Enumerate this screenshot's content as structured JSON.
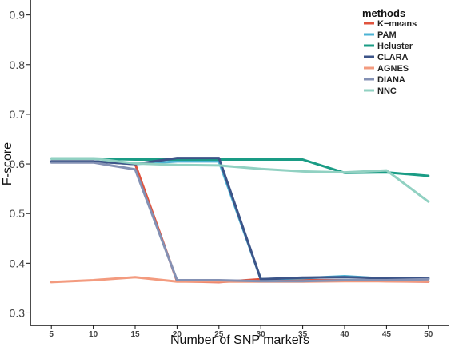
{
  "chart_data": {
    "type": "line",
    "xlabel": "Number of SNP markers",
    "ylabel": "F-score",
    "x": [
      5,
      10,
      15,
      20,
      25,
      30,
      35,
      40,
      45,
      50
    ],
    "xlim": [
      2.5,
      52.5
    ],
    "ylim": [
      0.275,
      0.93
    ],
    "yticks": [
      0.3,
      0.4,
      0.5,
      0.6,
      0.7,
      0.8,
      0.9
    ],
    "ytick_labels": [
      "0.3",
      "0.4",
      "0.5",
      "0.6",
      "0.7",
      "0.8",
      "0.9"
    ],
    "xticks": [
      5,
      10,
      15,
      20,
      25,
      30,
      35,
      40,
      45,
      50
    ],
    "xtick_labels": [
      "5",
      "10",
      "15",
      "20",
      "25",
      "30",
      "35",
      "40",
      "45",
      "50"
    ],
    "grid": false,
    "legend": {
      "title": "methods",
      "position": "top-right"
    },
    "series": [
      {
        "name": "K−means",
        "color": "#e0533d",
        "values": [
          0.605,
          0.605,
          0.6,
          0.364,
          0.362,
          0.368,
          0.366,
          0.366,
          0.364,
          0.363
        ]
      },
      {
        "name": "PAM",
        "color": "#4cb3d4",
        "values": [
          0.605,
          0.605,
          0.6,
          0.605,
          0.605,
          0.368,
          0.37,
          0.374,
          0.369,
          0.37
        ]
      },
      {
        "name": "Hcluster",
        "color": "#1a9c85",
        "values": [
          0.611,
          0.611,
          0.609,
          0.609,
          0.609,
          0.609,
          0.609,
          0.582,
          0.583,
          0.576
        ]
      },
      {
        "name": "CLARA",
        "color": "#3c5488",
        "values": [
          0.605,
          0.605,
          0.6,
          0.612,
          0.612,
          0.368,
          0.371,
          0.372,
          0.37,
          0.37
        ]
      },
      {
        "name": "AGNES",
        "color": "#f39b7f",
        "values": [
          0.362,
          0.366,
          0.372,
          0.363,
          0.363,
          0.363,
          0.363,
          0.364,
          0.364,
          0.364
        ]
      },
      {
        "name": "DIANA",
        "color": "#8491b4",
        "values": [
          0.603,
          0.603,
          0.589,
          0.366,
          0.366,
          0.364,
          0.364,
          0.366,
          0.366,
          0.368
        ]
      },
      {
        "name": "NNC",
        "color": "#91d1c2",
        "values": [
          0.611,
          0.611,
          0.601,
          0.598,
          0.597,
          0.59,
          0.585,
          0.583,
          0.587,
          0.524
        ]
      }
    ]
  }
}
